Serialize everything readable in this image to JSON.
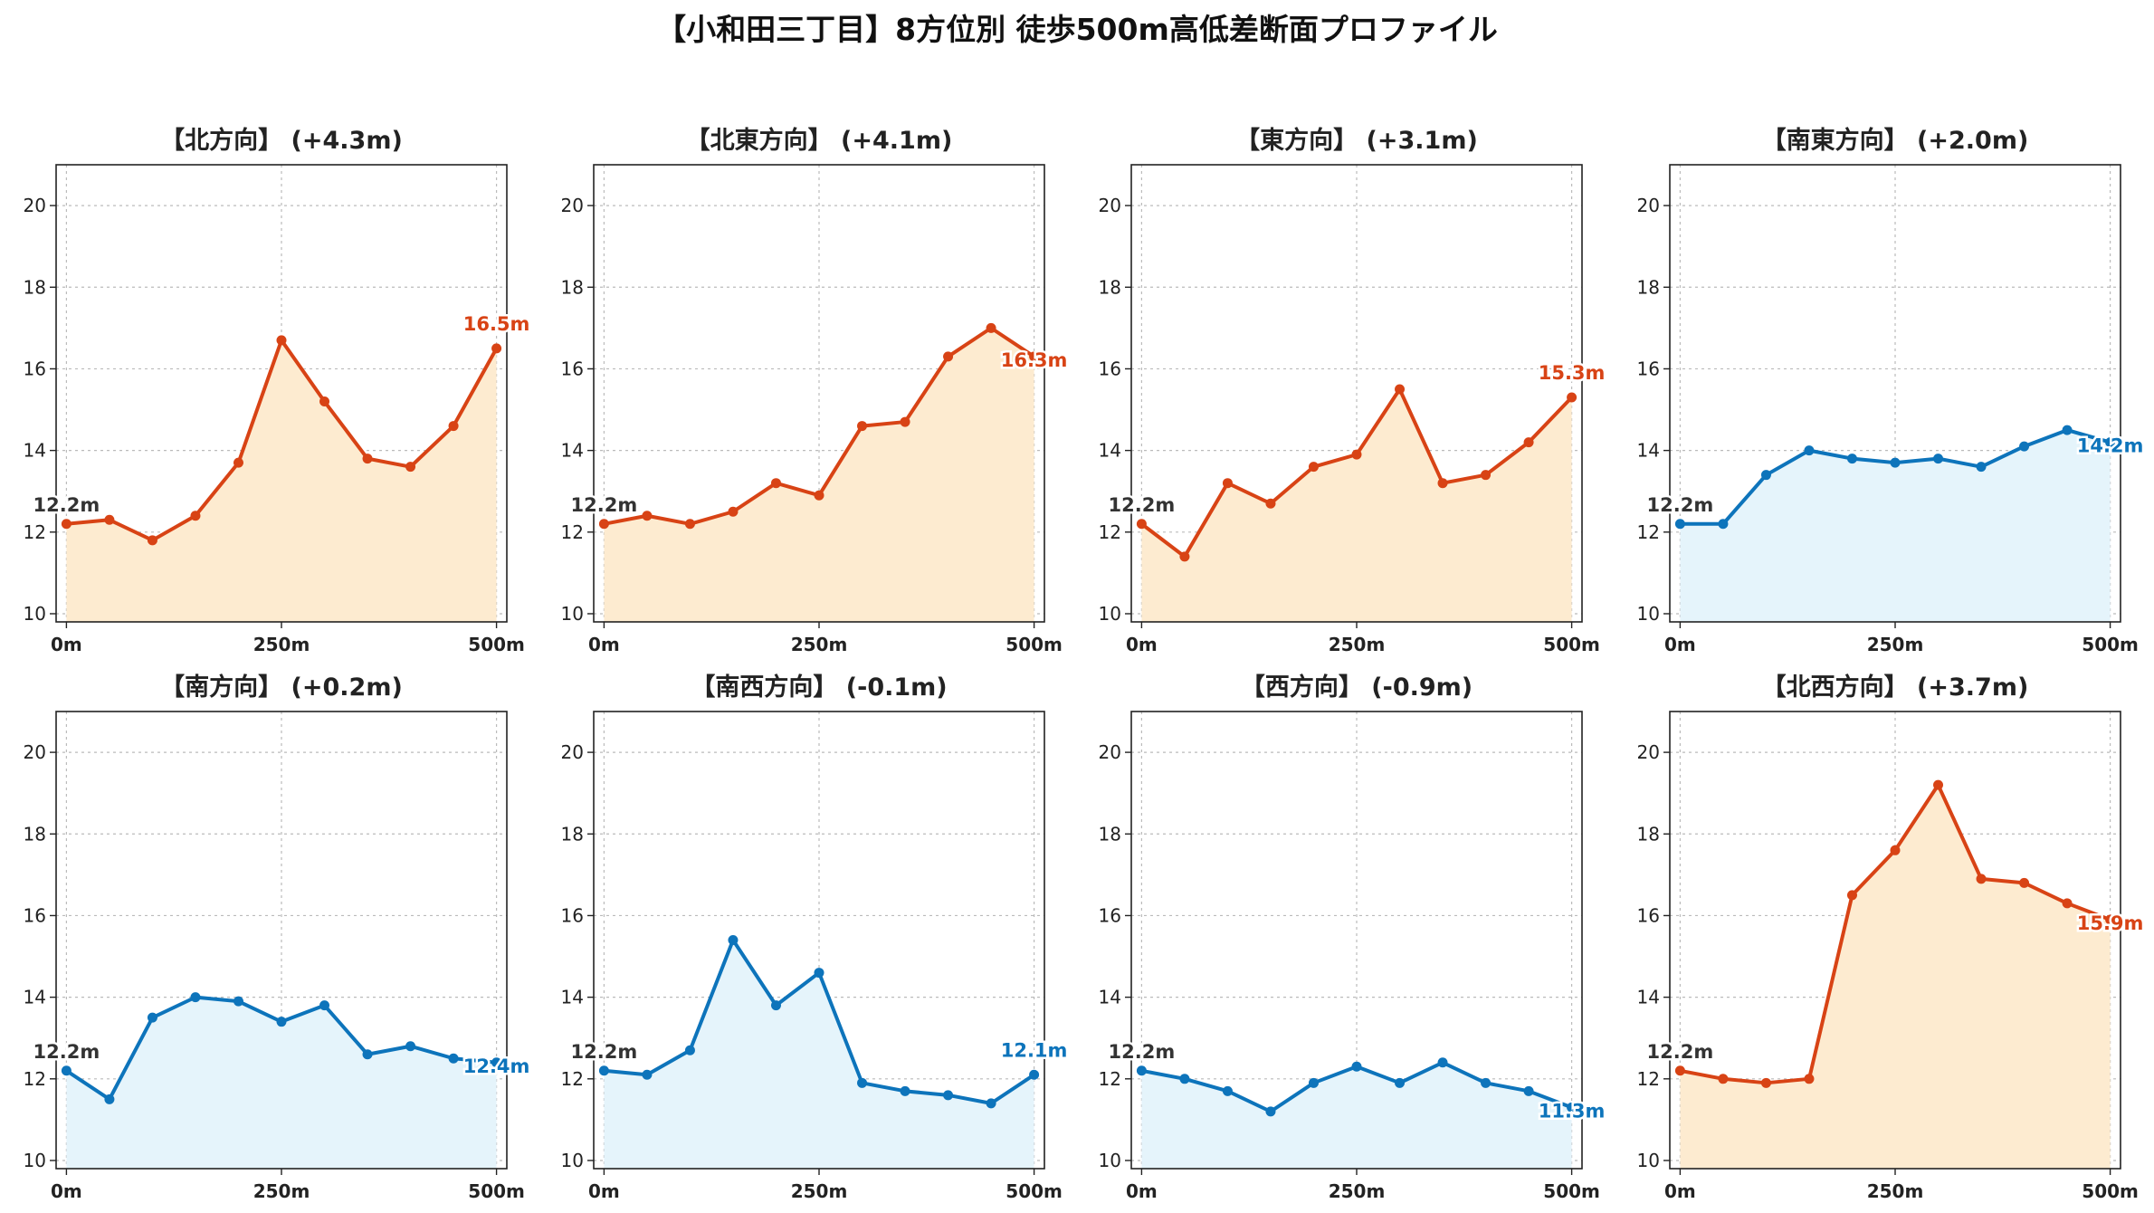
{
  "title": "【小和田三丁目】8方位別 徒歩500m高低差断面プロファイル",
  "colors": {
    "up_line": "#d84315",
    "up_fill": "#fdebd0",
    "down_line": "#0d74bb",
    "down_fill": "#e5f4fb",
    "start_label": "#333333",
    "grid": "#bbbbbb"
  },
  "chart_data": [
    {
      "type": "area",
      "title": "【北方向】 (+4.3m)",
      "x": [
        0,
        50,
        100,
        150,
        200,
        250,
        300,
        350,
        400,
        450,
        500
      ],
      "y": [
        12.2,
        12.3,
        11.8,
        12.4,
        13.7,
        16.7,
        15.2,
        13.8,
        13.6,
        14.6,
        16.5
      ],
      "trend": "up",
      "start_label": "12.2m",
      "end_label": "16.5m",
      "xticks": [
        "0m",
        "250m",
        "500m"
      ],
      "yticks": [
        10,
        12,
        14,
        16,
        18,
        20
      ],
      "ylim": [
        9.8,
        21
      ],
      "xlim": [
        -12,
        512
      ],
      "grid": true
    },
    {
      "type": "area",
      "title": "【北東方向】 (+4.1m)",
      "x": [
        0,
        50,
        100,
        150,
        200,
        250,
        300,
        350,
        400,
        450,
        500
      ],
      "y": [
        12.2,
        12.4,
        12.2,
        12.5,
        13.2,
        12.9,
        14.6,
        14.7,
        16.3,
        17.0,
        16.3
      ],
      "trend": "up",
      "start_label": "12.2m",
      "end_label": "16.3m",
      "xticks": [
        "0m",
        "250m",
        "500m"
      ],
      "yticks": [
        10,
        12,
        14,
        16,
        18,
        20
      ],
      "ylim": [
        9.8,
        21
      ],
      "xlim": [
        -12,
        512
      ],
      "grid": true
    },
    {
      "type": "area",
      "title": "【東方向】 (+3.1m)",
      "x": [
        0,
        50,
        100,
        150,
        200,
        250,
        300,
        350,
        400,
        450,
        500
      ],
      "y": [
        12.2,
        11.4,
        13.2,
        12.7,
        13.6,
        13.9,
        15.5,
        13.2,
        13.4,
        14.2,
        15.3
      ],
      "trend": "up",
      "start_label": "12.2m",
      "end_label": "15.3m",
      "xticks": [
        "0m",
        "250m",
        "500m"
      ],
      "yticks": [
        10,
        12,
        14,
        16,
        18,
        20
      ],
      "ylim": [
        9.8,
        21
      ],
      "xlim": [
        -12,
        512
      ],
      "grid": true
    },
    {
      "type": "area",
      "title": "【南東方向】 (+2.0m)",
      "x": [
        0,
        50,
        100,
        150,
        200,
        250,
        300,
        350,
        400,
        450,
        500
      ],
      "y": [
        12.2,
        12.2,
        13.4,
        14.0,
        13.8,
        13.7,
        13.8,
        13.6,
        14.1,
        14.5,
        14.2
      ],
      "trend": "down",
      "start_label": "12.2m",
      "end_label": "14.2m",
      "xticks": [
        "0m",
        "250m",
        "500m"
      ],
      "yticks": [
        10,
        12,
        14,
        16,
        18,
        20
      ],
      "ylim": [
        9.8,
        21
      ],
      "xlim": [
        -12,
        512
      ],
      "grid": true
    },
    {
      "type": "area",
      "title": "【南方向】 (+0.2m)",
      "x": [
        0,
        50,
        100,
        150,
        200,
        250,
        300,
        350,
        400,
        450,
        500
      ],
      "y": [
        12.2,
        11.5,
        13.5,
        14.0,
        13.9,
        13.4,
        13.8,
        12.6,
        12.8,
        12.5,
        12.4
      ],
      "trend": "down",
      "start_label": "12.2m",
      "end_label": "12.4m",
      "xticks": [
        "0m",
        "250m",
        "500m"
      ],
      "yticks": [
        10,
        12,
        14,
        16,
        18,
        20
      ],
      "ylim": [
        9.8,
        21
      ],
      "xlim": [
        -12,
        512
      ],
      "grid": true
    },
    {
      "type": "area",
      "title": "【南西方向】 (-0.1m)",
      "x": [
        0,
        50,
        100,
        150,
        200,
        250,
        300,
        350,
        400,
        450,
        500
      ],
      "y": [
        12.2,
        12.1,
        12.7,
        15.4,
        13.8,
        14.6,
        11.9,
        11.7,
        11.6,
        11.4,
        12.1
      ],
      "trend": "down",
      "start_label": "12.2m",
      "end_label": "12.1m",
      "xticks": [
        "0m",
        "250m",
        "500m"
      ],
      "yticks": [
        10,
        12,
        14,
        16,
        18,
        20
      ],
      "ylim": [
        9.8,
        21
      ],
      "xlim": [
        -12,
        512
      ],
      "grid": true
    },
    {
      "type": "area",
      "title": "【西方向】 (-0.9m)",
      "x": [
        0,
        50,
        100,
        150,
        200,
        250,
        300,
        350,
        400,
        450,
        500
      ],
      "y": [
        12.2,
        12.0,
        11.7,
        11.2,
        11.9,
        12.3,
        11.9,
        12.4,
        11.9,
        11.7,
        11.3
      ],
      "trend": "down",
      "start_label": "12.2m",
      "end_label": "11.3m",
      "xticks": [
        "0m",
        "250m",
        "500m"
      ],
      "yticks": [
        10,
        12,
        14,
        16,
        18,
        20
      ],
      "ylim": [
        9.8,
        21
      ],
      "xlim": [
        -12,
        512
      ],
      "grid": true
    },
    {
      "type": "area",
      "title": "【北西方向】 (+3.7m)",
      "x": [
        0,
        50,
        100,
        150,
        200,
        250,
        300,
        350,
        400,
        450,
        500
      ],
      "y": [
        12.2,
        12.0,
        11.9,
        12.0,
        16.5,
        17.6,
        19.2,
        16.9,
        16.8,
        16.3,
        15.9
      ],
      "trend": "up",
      "start_label": "12.2m",
      "end_label": "15.9m",
      "xticks": [
        "0m",
        "250m",
        "500m"
      ],
      "yticks": [
        10,
        12,
        14,
        16,
        18,
        20
      ],
      "ylim": [
        9.8,
        21
      ],
      "xlim": [
        -12,
        512
      ],
      "grid": true
    }
  ]
}
